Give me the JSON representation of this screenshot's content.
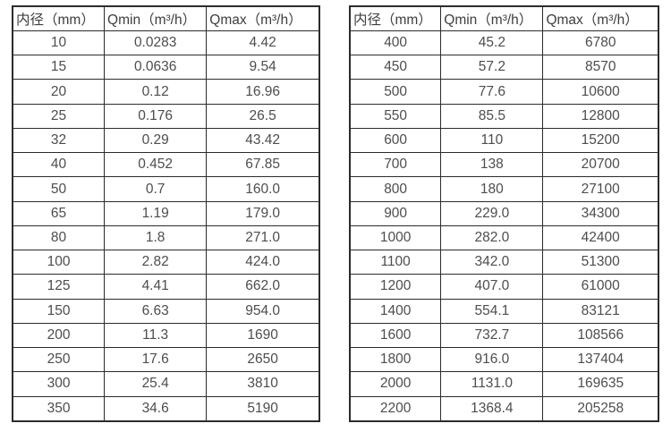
{
  "page": {
    "background_color": "#ffffff",
    "border_color": "#2b2b2b",
    "header_text_color": "#3e3e3e",
    "cell_text_color": "#4d4d4d"
  },
  "tables": [
    {
      "name": "flow-table-small-diameters",
      "columns": [
        "内径（mm）",
        "Qmin（m³/h）",
        "Qmax（m³/h）"
      ],
      "rows": [
        [
          "10",
          "0.0283",
          "4.42"
        ],
        [
          "15",
          "0.0636",
          "9.54"
        ],
        [
          "20",
          "0.12",
          "16.96"
        ],
        [
          "25",
          "0.176",
          "26.5"
        ],
        [
          "32",
          "0.29",
          "43.42"
        ],
        [
          "40",
          "0.452",
          "67.85"
        ],
        [
          "50",
          "0.7",
          "160.0"
        ],
        [
          "65",
          "1.19",
          "179.0"
        ],
        [
          "80",
          "1.8",
          "271.0"
        ],
        [
          "100",
          "2.82",
          "424.0"
        ],
        [
          "125",
          "4.41",
          "662.0"
        ],
        [
          "150",
          "6.63",
          "954.0"
        ],
        [
          "200",
          "11.3",
          "1690"
        ],
        [
          "250",
          "17.6",
          "2650"
        ],
        [
          "300",
          "25.4",
          "3810"
        ],
        [
          "350",
          "34.6",
          "5190"
        ]
      ]
    },
    {
      "name": "flow-table-large-diameters",
      "columns": [
        "内径（mm）",
        "Qmin（m³/h）",
        "Qmax（m³/h）"
      ],
      "rows": [
        [
          "400",
          "45.2",
          "6780"
        ],
        [
          "450",
          "57.2",
          "8570"
        ],
        [
          "500",
          "77.6",
          "10600"
        ],
        [
          "550",
          "85.5",
          "12800"
        ],
        [
          "600",
          "110",
          "15200"
        ],
        [
          "700",
          "138",
          "20700"
        ],
        [
          "800",
          "180",
          "27100"
        ],
        [
          "900",
          "229.0",
          "34300"
        ],
        [
          "1000",
          "282.0",
          "42400"
        ],
        [
          "1100",
          "342.0",
          "51300"
        ],
        [
          "1200",
          "407.0",
          "61000"
        ],
        [
          "1400",
          "554.1",
          "83121"
        ],
        [
          "1600",
          "732.7",
          "108566"
        ],
        [
          "1800",
          "916.0",
          "137404"
        ],
        [
          "2000",
          "1131.0",
          "169635"
        ],
        [
          "2200",
          "1368.4",
          "205258"
        ]
      ]
    }
  ]
}
